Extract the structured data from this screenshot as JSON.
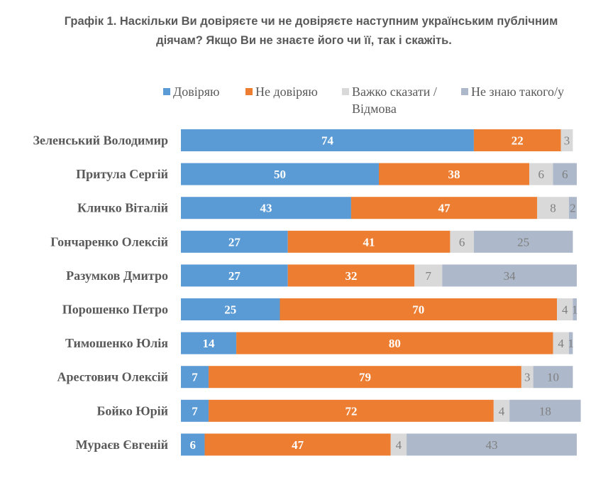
{
  "chart_data": {
    "type": "bar",
    "orientation": "horizontal",
    "stacked": true,
    "title": "Графік 1. Наскільки Ви довіряєте чи не довіряєте наступним українським публічним діячам? Якщо Ви не знаєте його чи її, так і скажіть.",
    "title_lines": [
      "Графік 1. Наскільки Ви довіряєте чи не довіряєте наступним українським публічним",
      "діячам? Якщо Ви не знаєте його чи її, так і скажіть."
    ],
    "xlabel": "",
    "ylabel": "",
    "xlim": [
      0,
      100
    ],
    "grid": false,
    "legend_position": "top",
    "categories": [
      "Зеленський Володимир",
      "Притула Сергій",
      "Кличко Віталій",
      "Гончаренко Олексій",
      "Разумков Дмитро",
      "Порошенко Петро",
      "Тимошенко Юлія",
      "Арестович Олексій",
      "Бойко Юрій",
      "Мураєв Євгеній"
    ],
    "series": [
      {
        "name": "Довіряю",
        "color": "#5b9bd5",
        "label_color": "#ffffff",
        "values": [
          74,
          50,
          43,
          27,
          27,
          25,
          14,
          7,
          7,
          6
        ]
      },
      {
        "name": "Не довіряю",
        "color": "#ed7d31",
        "label_color": "#ffffff",
        "values": [
          22,
          38,
          47,
          41,
          32,
          70,
          80,
          79,
          72,
          47
        ]
      },
      {
        "name": "Важко сказати / Відмова",
        "color": "#d9d9d9",
        "label_color": "#7f7f7f",
        "values": [
          3,
          6,
          8,
          6,
          7,
          4,
          4,
          3,
          4,
          4
        ]
      },
      {
        "name": "Не знаю такого/у",
        "color": "#adb9ca",
        "label_color": "#7f7f7f",
        "values": [
          0,
          6,
          2,
          25,
          34,
          1,
          1,
          10,
          18,
          43
        ]
      }
    ]
  },
  "legend": {
    "items": [
      {
        "label": "Довіряю",
        "color": "#5b9bd5"
      },
      {
        "label": "Не довіряю",
        "color": "#ed7d31"
      },
      {
        "label": "Важко сказати /",
        "label2": "Відмова",
        "color": "#d9d9d9"
      },
      {
        "label": "Не знаю такого/у",
        "color": "#adb9ca"
      }
    ]
  }
}
